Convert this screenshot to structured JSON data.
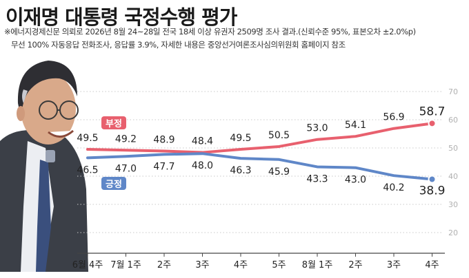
{
  "header": {
    "title": "이재명 대통령 국정수행 평가",
    "note_line1": "※에너지경제신문 의뢰로 2026년 8월 24~28일 전국 18세 이상 유권자 2509명 조사 결과.(신뢰수준 95%, 표본오차 ±2.0%p)",
    "note_line2": "무선 100% 자동응답 전화조사, 응답률 3.9%, 자세한 내용은 중앙선거여론조사심의위원회 홈페이지 참조"
  },
  "chart_data": {
    "type": "line",
    "categories": [
      "6월 4주",
      "7월 1주",
      "2주",
      "3주",
      "4주",
      "5주",
      "8월 1주",
      "2주",
      "3주",
      "4주"
    ],
    "series": [
      {
        "name": "부정",
        "color": "#e8606e",
        "values": [
          49.5,
          49.2,
          48.9,
          48.4,
          49.5,
          50.5,
          53.0,
          54.1,
          56.9,
          58.7
        ]
      },
      {
        "name": "긍정",
        "color": "#5f87c8",
        "values": [
          46.5,
          47.0,
          47.7,
          48.0,
          46.3,
          45.9,
          43.3,
          43.0,
          40.2,
          38.9
        ]
      }
    ],
    "value_labels": {
      "부정": [
        "49.5",
        "49.2",
        "48.9",
        "48.4",
        "49.5",
        "50.5",
        "53.0",
        "54.1",
        "56.9",
        "58.7"
      ],
      "긍정": [
        "46.5",
        "47.0",
        "47.7",
        "48.0",
        "46.3",
        "45.9",
        "43.3",
        "43.0",
        "40.2",
        "38.9"
      ]
    },
    "yticks": [
      "20",
      "30",
      "40",
      "50",
      "60",
      "70"
    ],
    "ylim": [
      17,
      72
    ],
    "grid": true
  },
  "icons": {
    "photo": "politician-portrait-icon"
  }
}
